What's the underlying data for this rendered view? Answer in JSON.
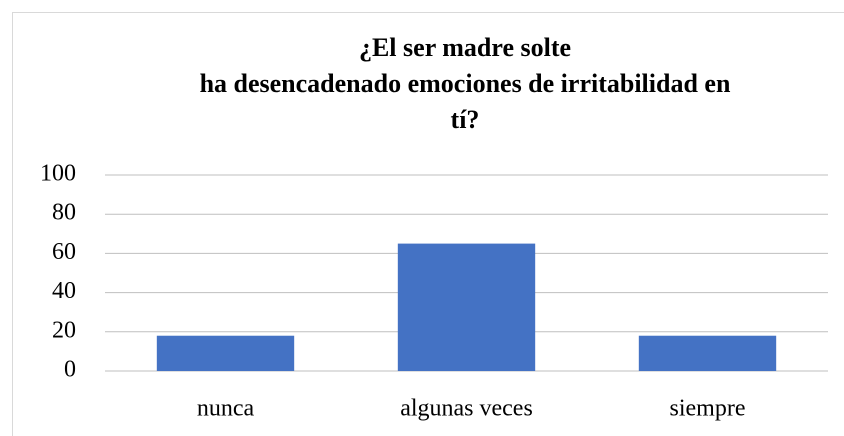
{
  "chart_data": {
    "type": "bar",
    "title": "¿El ser madre solte\nha desencadenado emociones de irritabilidad en\ntí?",
    "categories": [
      "nunca",
      "algunas veces",
      "siempre"
    ],
    "values": [
      18,
      65,
      18
    ],
    "color": "#4472c4",
    "ylim": [
      0,
      100
    ],
    "yticks": [
      0,
      20,
      40,
      60,
      80,
      100
    ],
    "grid": true
  }
}
